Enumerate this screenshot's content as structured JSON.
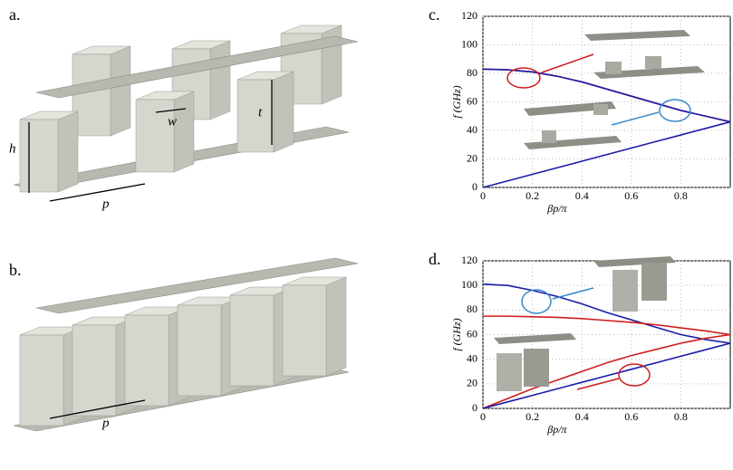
{
  "labels": {
    "panel_a": "a.",
    "panel_b": "b.",
    "h": "h",
    "w": "w",
    "t": "t",
    "p_a": "p",
    "p_b": "p"
  },
  "chart_data": [
    {
      "type": "line",
      "panel_label": "c.",
      "y_label": "f (GHz)",
      "x_label": "βp/π",
      "x": [
        0,
        0.1,
        0.2,
        0.3,
        0.4,
        0.5,
        0.6,
        0.7,
        0.8,
        0.9,
        1.0
      ],
      "series": [
        {
          "color": "#d01c1c",
          "values": [
            83,
            82.5,
            81,
            78,
            74,
            69,
            64,
            59,
            54,
            50,
            46
          ]
        },
        {
          "color": "#1c1ca8",
          "values": [
            83,
            82.5,
            81,
            78,
            74,
            69,
            64,
            59,
            54,
            50,
            46
          ]
        },
        {
          "color": "#1c1ca8",
          "values": [
            0,
            4.6,
            9.2,
            13.8,
            18.4,
            23,
            27.6,
            32.2,
            36.8,
            41.4,
            46
          ]
        }
      ],
      "xlim": [
        0,
        1
      ],
      "xticks": [
        0,
        0.2,
        0.4,
        0.6,
        0.8
      ],
      "ylim": [
        0,
        120
      ],
      "yticks": [
        0,
        20,
        40,
        60,
        80,
        100,
        120
      ],
      "grid": true
    },
    {
      "type": "line",
      "panel_label": "d.",
      "y_label": "f (GHz)",
      "x_label": "βp/π",
      "x": [
        0,
        0.1,
        0.2,
        0.3,
        0.4,
        0.5,
        0.6,
        0.7,
        0.8,
        0.9,
        1.0
      ],
      "series": [
        {
          "color": "#1c1ca8",
          "values": [
            101,
            100,
            96,
            91,
            85,
            78,
            72,
            66,
            60,
            56,
            53
          ]
        },
        {
          "color": "#d01c1c",
          "values": [
            75,
            75,
            74.5,
            74,
            73,
            71.5,
            70,
            68,
            65.5,
            63,
            60
          ]
        },
        {
          "color": "#d01c1c",
          "values": [
            0,
            8,
            16,
            23,
            30,
            37,
            43,
            48,
            53,
            57,
            60
          ]
        },
        {
          "color": "#1c1ca8",
          "values": [
            0,
            5.3,
            10.6,
            15.9,
            21.2,
            26.5,
            31.8,
            37.1,
            42.4,
            47.7,
            53
          ]
        }
      ],
      "xlim": [
        0,
        1
      ],
      "xticks": [
        0,
        0.2,
        0.4,
        0.6,
        0.8
      ],
      "ylim": [
        0,
        120
      ],
      "yticks": [
        0,
        20,
        40,
        60,
        80,
        100,
        120
      ],
      "grid": true
    }
  ]
}
